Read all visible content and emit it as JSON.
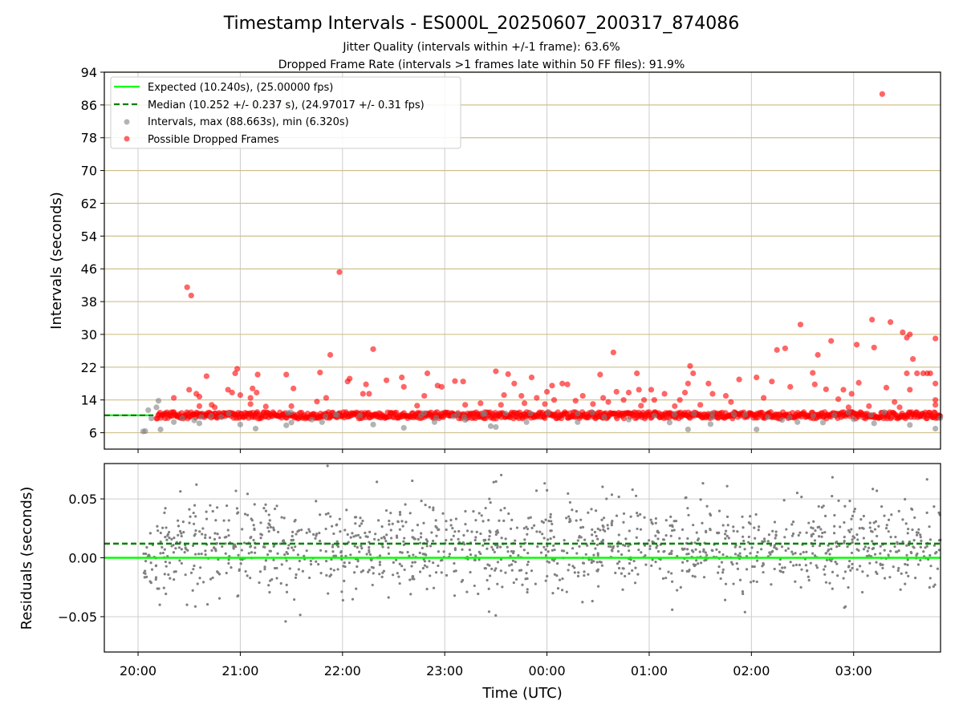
{
  "chart_data": [
    {
      "type": "scatter",
      "title": "Timestamp Intervals - ES000L_20250607_200317_874086",
      "subtitle_lines": [
        "Jitter Quality (intervals within +/-1 frame): 63.6%",
        "Dropped Frame Rate (intervals >1 frames late within 50 FF files): 91.9%"
      ],
      "ylabel": "Intervals (seconds)",
      "xlabel": "",
      "x_unit": "hours since 20:00 UTC",
      "xlim": [
        -0.33,
        7.85
      ],
      "ylim": [
        2,
        94
      ],
      "yticks": [
        6,
        14,
        22,
        30,
        38,
        46,
        54,
        62,
        70,
        78,
        86,
        94
      ],
      "xticks": [
        {
          "x": 0,
          "label": "20:00"
        },
        {
          "x": 1,
          "label": "21:00"
        },
        {
          "x": 2,
          "label": "22:00"
        },
        {
          "x": 3,
          "label": "23:00"
        },
        {
          "x": 4,
          "label": "00:00"
        },
        {
          "x": 5,
          "label": "01:00"
        },
        {
          "x": 6,
          "label": "02:00"
        },
        {
          "x": 7,
          "label": "03:00"
        }
      ],
      "grid": "on",
      "legend_position": "top-left",
      "legend": [
        {
          "label": "Expected (10.240s), (25.00000 fps)",
          "style": "line",
          "color": "#00ff00"
        },
        {
          "label": "Median (10.252 +/- 0.237 s), (24.97017 +/- 0.31 fps)",
          "style": "dashed",
          "color": "#008000"
        },
        {
          "label": "Intervals, max (88.663s), min (6.320s)",
          "style": "marker",
          "color": "#808080"
        },
        {
          "label": "Possible Dropped Frames",
          "style": "marker",
          "color": "#ff0000"
        }
      ],
      "reference_lines": [
        {
          "name": "Expected",
          "y": 10.24,
          "color": "#00ff00",
          "x_range": [
            -0.33,
            0.15
          ]
        },
        {
          "name": "Median",
          "y": 10.252,
          "color": "#008000",
          "dash": true,
          "x_range": [
            -0.33,
            0.15
          ]
        }
      ],
      "series": [
        {
          "name": "Intervals, max (88.663s), min (6.320s)",
          "color": "#808080",
          "points": [
            [
              0.05,
              6.32
            ],
            [
              0.07,
              6.4
            ],
            [
              0.1,
              11.5
            ],
            [
              0.13,
              9.5
            ],
            [
              0.18,
              12.2
            ],
            [
              0.2,
              13.8
            ],
            [
              0.22,
              6.8
            ],
            [
              0.35,
              8.6
            ],
            [
              0.6,
              8.3
            ],
            [
              1.0,
              8.0
            ],
            [
              1.15,
              7.0
            ],
            [
              1.45,
              7.8
            ],
            [
              1.5,
              8.5
            ],
            [
              1.8,
              8.6
            ],
            [
              2.3,
              8.0
            ],
            [
              2.6,
              7.2
            ],
            [
              2.9,
              8.6
            ],
            [
              3.45,
              7.6
            ],
            [
              3.5,
              7.4
            ],
            [
              3.8,
              8.6
            ],
            [
              4.3,
              8.6
            ],
            [
              5.2,
              8.5
            ],
            [
              5.38,
              6.8
            ],
            [
              5.6,
              8.1
            ],
            [
              6.05,
              6.8
            ],
            [
              6.45,
              8.6
            ],
            [
              6.7,
              8.5
            ],
            [
              7.2,
              8.3
            ],
            [
              7.55,
              7.9
            ],
            [
              7.8,
              7.0
            ],
            [
              0.55,
              9.0
            ],
            [
              1.7,
              9.2
            ],
            [
              3.2,
              9.1
            ],
            [
              4.8,
              9.2
            ],
            [
              6.3,
              9.1
            ],
            [
              7.0,
              9.3
            ]
          ]
        },
        {
          "name": "Possible Dropped Frames",
          "color": "#ff0000",
          "points": [
            [
              0.35,
              14.5
            ],
            [
              0.48,
              41.5
            ],
            [
              0.52,
              39.5
            ],
            [
              0.5,
              16.5
            ],
            [
              0.57,
              15.5
            ],
            [
              0.6,
              14.8
            ],
            [
              0.6,
              12.5
            ],
            [
              0.67,
              19.8
            ],
            [
              0.72,
              12.8
            ],
            [
              0.88,
              16.5
            ],
            [
              0.95,
              20.5
            ],
            [
              0.97,
              21.6
            ],
            [
              0.92,
              15.8
            ],
            [
              1.0,
              15.2
            ],
            [
              1.1,
              13.0
            ],
            [
              1.12,
              16.8
            ],
            [
              1.16,
              15.8
            ],
            [
              1.17,
              20.2
            ],
            [
              1.1,
              14.5
            ],
            [
              1.45,
              20.2
            ],
            [
              1.5,
              12.5
            ],
            [
              1.52,
              16.8
            ],
            [
              1.75,
              13.6
            ],
            [
              1.78,
              20.7
            ],
            [
              1.84,
              14.5
            ],
            [
              1.88,
              25.0
            ],
            [
              1.97,
              45.2
            ],
            [
              2.05,
              18.5
            ],
            [
              2.07,
              19.2
            ],
            [
              2.2,
              15.5
            ],
            [
              2.23,
              17.8
            ],
            [
              2.26,
              15.5
            ],
            [
              2.3,
              26.4
            ],
            [
              2.43,
              18.8
            ],
            [
              2.58,
              19.5
            ],
            [
              2.6,
              17.2
            ],
            [
              2.8,
              15.0
            ],
            [
              2.83,
              20.5
            ],
            [
              2.93,
              17.5
            ],
            [
              2.97,
              17.2
            ],
            [
              3.1,
              18.6
            ],
            [
              3.18,
              18.5
            ],
            [
              3.2,
              12.8
            ],
            [
              3.35,
              13.2
            ],
            [
              3.5,
              21.0
            ],
            [
              3.58,
              15.2
            ],
            [
              3.62,
              20.3
            ],
            [
              3.68,
              18.0
            ],
            [
              3.75,
              15.0
            ],
            [
              3.78,
              13.2
            ],
            [
              3.85,
              19.5
            ],
            [
              3.9,
              14.5
            ],
            [
              3.98,
              13.0
            ],
            [
              4.0,
              16.0
            ],
            [
              4.05,
              17.5
            ],
            [
              4.07,
              14.0
            ],
            [
              4.15,
              18.0
            ],
            [
              4.2,
              17.8
            ],
            [
              4.28,
              13.8
            ],
            [
              4.35,
              15.0
            ],
            [
              4.45,
              13.0
            ],
            [
              4.52,
              20.2
            ],
            [
              4.55,
              14.5
            ],
            [
              4.6,
              13.5
            ],
            [
              4.65,
              25.6
            ],
            [
              4.68,
              16.0
            ],
            [
              4.75,
              14.0
            ],
            [
              4.8,
              15.8
            ],
            [
              4.88,
              20.5
            ],
            [
              4.9,
              16.5
            ],
            [
              4.95,
              14.0
            ],
            [
              5.02,
              16.5
            ],
            [
              5.05,
              14.0
            ],
            [
              5.15,
              15.5
            ],
            [
              5.3,
              14.0
            ],
            [
              5.38,
              18.0
            ],
            [
              5.4,
              22.3
            ],
            [
              5.43,
              20.5
            ],
            [
              5.35,
              15.8
            ],
            [
              5.58,
              18.0
            ],
            [
              5.62,
              15.5
            ],
            [
              5.75,
              15.0
            ],
            [
              5.8,
              13.5
            ],
            [
              5.88,
              19.0
            ],
            [
              6.05,
              19.5
            ],
            [
              6.12,
              14.5
            ],
            [
              6.2,
              18.5
            ],
            [
              6.25,
              26.2
            ],
            [
              6.33,
              26.6
            ],
            [
              6.38,
              17.2
            ],
            [
              6.48,
              32.4
            ],
            [
              6.6,
              20.6
            ],
            [
              6.62,
              17.8
            ],
            [
              6.65,
              25.0
            ],
            [
              6.73,
              16.6
            ],
            [
              6.78,
              28.4
            ],
            [
              6.85,
              14.2
            ],
            [
              6.9,
              16.5
            ],
            [
              6.98,
              15.5
            ],
            [
              7.03,
              27.5
            ],
            [
              7.05,
              18.2
            ],
            [
              7.18,
              33.6
            ],
            [
              7.2,
              26.8
            ],
            [
              7.28,
              88.66
            ],
            [
              7.32,
              17.0
            ],
            [
              7.36,
              33.0
            ],
            [
              7.48,
              30.5
            ],
            [
              7.52,
              29.2
            ],
            [
              7.55,
              30.0
            ],
            [
              7.58,
              24.0
            ],
            [
              7.55,
              16.5
            ],
            [
              7.52,
              20.5
            ],
            [
              7.62,
              20.5
            ],
            [
              7.68,
              20.5
            ],
            [
              7.72,
              20.5
            ],
            [
              7.75,
              20.5
            ],
            [
              7.8,
              29.0
            ],
            [
              7.8,
              18.0
            ],
            [
              7.8,
              14.0
            ],
            [
              7.8,
              12.8
            ],
            [
              7.4,
              13.5
            ],
            [
              7.45,
              12.2
            ],
            [
              7.15,
              12.5
            ],
            [
              6.95,
              12.2
            ],
            [
              5.5,
              12.8
            ],
            [
              5.25,
              12.5
            ],
            [
              4.92,
              12.6
            ],
            [
              3.55,
              12.8
            ],
            [
              2.73,
              12.6
            ],
            [
              1.25,
              12.4
            ],
            [
              0.75,
              12.2
            ]
          ],
          "baseline_band": {
            "y": 10.25,
            "spread": 0.8,
            "x_range": [
              0.18,
              7.85
            ]
          }
        }
      ]
    },
    {
      "type": "scatter",
      "title": "",
      "xlabel": "Time (UTC)",
      "ylabel": "Residuals (seconds)",
      "x_unit": "hours since 20:00 UTC",
      "xlim": [
        -0.33,
        7.85
      ],
      "ylim": [
        -0.08,
        0.08
      ],
      "yticks": [
        {
          "y": 0.05,
          "label": "0.05"
        },
        {
          "y": 0.0,
          "label": "0.00"
        },
        {
          "y": -0.05,
          "label": "−0.05"
        }
      ],
      "xticks": [
        {
          "x": 0,
          "label": "20:00"
        },
        {
          "x": 1,
          "label": "21:00"
        },
        {
          "x": 2,
          "label": "22:00"
        },
        {
          "x": 3,
          "label": "23:00"
        },
        {
          "x": 4,
          "label": "00:00"
        },
        {
          "x": 5,
          "label": "01:00"
        },
        {
          "x": 6,
          "label": "02:00"
        },
        {
          "x": 7,
          "label": "03:00"
        }
      ],
      "grid": "on",
      "reference_lines": [
        {
          "name": "Expected",
          "y": 0.0,
          "color": "#00ff00"
        },
        {
          "name": "Median",
          "y": 0.012,
          "color": "#008000",
          "dash": true
        }
      ],
      "series": [
        {
          "name": "Residuals",
          "color": "#808080",
          "distribution": {
            "x_range": [
              0.05,
              7.85
            ],
            "center": 0.01,
            "spread": 0.02,
            "ylim": [
              -0.065,
              0.08
            ],
            "count": 1400
          }
        }
      ]
    }
  ]
}
